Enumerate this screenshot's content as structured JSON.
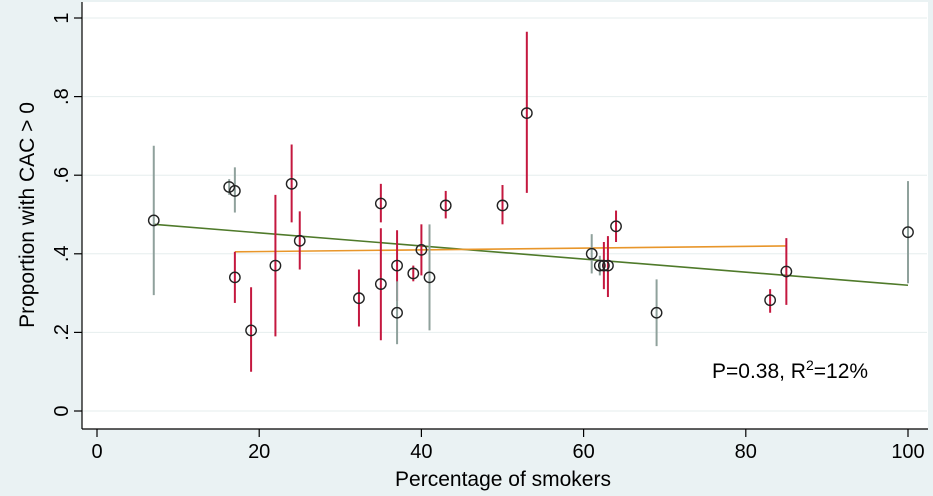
{
  "chart_data": {
    "type": "scatter",
    "title": "",
    "xlabel": "Percentage of smokers",
    "ylabel": "Proportion with CAC > 0",
    "xlim": [
      0,
      100
    ],
    "ylim": [
      0,
      1
    ],
    "x_ticks": [
      0,
      20,
      40,
      60,
      80,
      100
    ],
    "x_tick_labels": [
      "0",
      "20",
      "40",
      "60",
      "80",
      "100"
    ],
    "y_ticks": [
      0,
      0.2,
      0.4,
      0.6,
      0.8,
      1
    ],
    "y_tick_labels": [
      "0",
      ".2",
      ".4",
      ".6",
      ".8",
      "1"
    ],
    "grid": true,
    "annotation": {
      "prefix": "P=0.38, R",
      "sup": "2",
      "suffix": "=12%"
    },
    "colors": {
      "background": "#eaf2f3",
      "plot_background": "#ffffff",
      "grid": "#e6eeee",
      "series_red": "#c4183f",
      "series_gray": "#8fa19c",
      "fit_green": "#4f7a2a",
      "fit_orange": "#e8962a",
      "marker": "#222222"
    },
    "series": [
      {
        "color_key": "series_red",
        "points": [
          {
            "x": 17,
            "y": 0.34,
            "lo": 0.275,
            "hi": 0.405
          },
          {
            "x": 19,
            "y": 0.205,
            "lo": 0.1,
            "hi": 0.315
          },
          {
            "x": 22,
            "y": 0.37,
            "lo": 0.19,
            "hi": 0.55
          },
          {
            "x": 24,
            "y": 0.578,
            "lo": 0.48,
            "hi": 0.678
          },
          {
            "x": 25,
            "y": 0.433,
            "lo": 0.36,
            "hi": 0.508
          },
          {
            "x": 32.3,
            "y": 0.287,
            "lo": 0.215,
            "hi": 0.36
          },
          {
            "x": 35,
            "y": 0.528,
            "lo": 0.48,
            "hi": 0.578
          },
          {
            "x": 35,
            "y": 0.323,
            "lo": 0.18,
            "hi": 0.465
          },
          {
            "x": 37,
            "y": 0.37,
            "lo": 0.28,
            "hi": 0.46
          },
          {
            "x": 39,
            "y": 0.35,
            "lo": 0.33,
            "hi": 0.37
          },
          {
            "x": 40,
            "y": 0.41,
            "lo": 0.345,
            "hi": 0.475
          },
          {
            "x": 43,
            "y": 0.523,
            "lo": 0.49,
            "hi": 0.56
          },
          {
            "x": 50,
            "y": 0.523,
            "lo": 0.475,
            "hi": 0.575
          },
          {
            "x": 53,
            "y": 0.758,
            "lo": 0.555,
            "hi": 0.965
          },
          {
            "x": 62.5,
            "y": 0.37,
            "lo": 0.31,
            "hi": 0.43
          },
          {
            "x": 63,
            "y": 0.37,
            "lo": 0.29,
            "hi": 0.445
          },
          {
            "x": 64,
            "y": 0.47,
            "lo": 0.43,
            "hi": 0.51
          },
          {
            "x": 83,
            "y": 0.282,
            "lo": 0.25,
            "hi": 0.31
          },
          {
            "x": 85,
            "y": 0.355,
            "lo": 0.27,
            "hi": 0.44
          }
        ]
      },
      {
        "color_key": "series_gray",
        "points": [
          {
            "x": 7,
            "y": 0.485,
            "lo": 0.295,
            "hi": 0.675
          },
          {
            "x": 16.3,
            "y": 0.57,
            "lo": 0.55,
            "hi": 0.59
          },
          {
            "x": 17,
            "y": 0.56,
            "lo": 0.505,
            "hi": 0.62
          },
          {
            "x": 37,
            "y": 0.25,
            "lo": 0.17,
            "hi": 0.33
          },
          {
            "x": 41,
            "y": 0.34,
            "lo": 0.205,
            "hi": 0.475
          },
          {
            "x": 61,
            "y": 0.4,
            "lo": 0.35,
            "hi": 0.45
          },
          {
            "x": 62,
            "y": 0.37,
            "lo": 0.345,
            "hi": 0.395
          },
          {
            "x": 69,
            "y": 0.25,
            "lo": 0.165,
            "hi": 0.335
          },
          {
            "x": 100,
            "y": 0.455,
            "lo": 0.325,
            "hi": 0.585
          }
        ]
      }
    ],
    "fit_lines": [
      {
        "color_key": "fit_green",
        "x": [
          7,
          100
        ],
        "y": [
          0.475,
          0.32
        ]
      },
      {
        "color_key": "fit_orange",
        "x": [
          17,
          85
        ],
        "y": [
          0.405,
          0.42
        ]
      }
    ]
  }
}
